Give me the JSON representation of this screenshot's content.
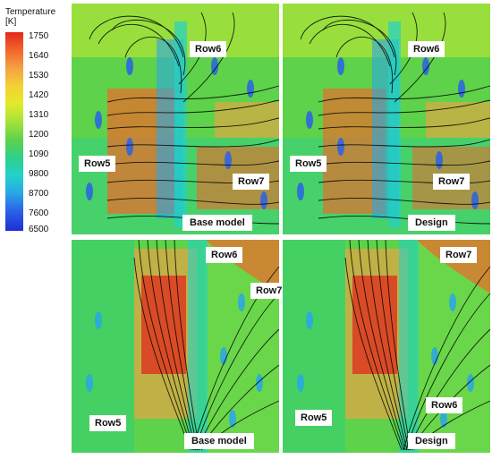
{
  "legend": {
    "title": "Temperature",
    "unit": "[K]",
    "ticks": [
      "1750",
      "1640",
      "1530",
      "1420",
      "1310",
      "1200",
      "1090",
      "9800",
      "8700",
      "7600",
      "6500"
    ]
  },
  "panels": [
    {
      "id": "top-left",
      "model": "Base model",
      "labels": [
        "Row6",
        "Row5",
        "Row7"
      ]
    },
    {
      "id": "top-right",
      "model": "Design",
      "labels": [
        "Row6",
        "Row5",
        "Row7"
      ]
    },
    {
      "id": "bottom-left",
      "model": "Base model",
      "labels": [
        "Row6",
        "Row7",
        "Row5"
      ]
    },
    {
      "id": "bottom-right",
      "model": "Design",
      "labels": [
        "Row7",
        "Row6",
        "Row5"
      ]
    }
  ]
}
